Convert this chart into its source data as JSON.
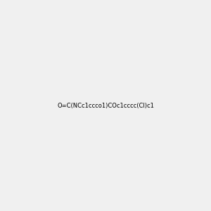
{
  "smiles": "O=C(NCc1ccco1)COc1cccc(Cl)c1",
  "image_size": 300,
  "background_color": "#f0f0f0",
  "title": "",
  "atom_colors": {
    "O": "#ff0000",
    "N": "#0000ff",
    "Cl": "#00cc00",
    "C": "#000000",
    "H": "#808080"
  }
}
